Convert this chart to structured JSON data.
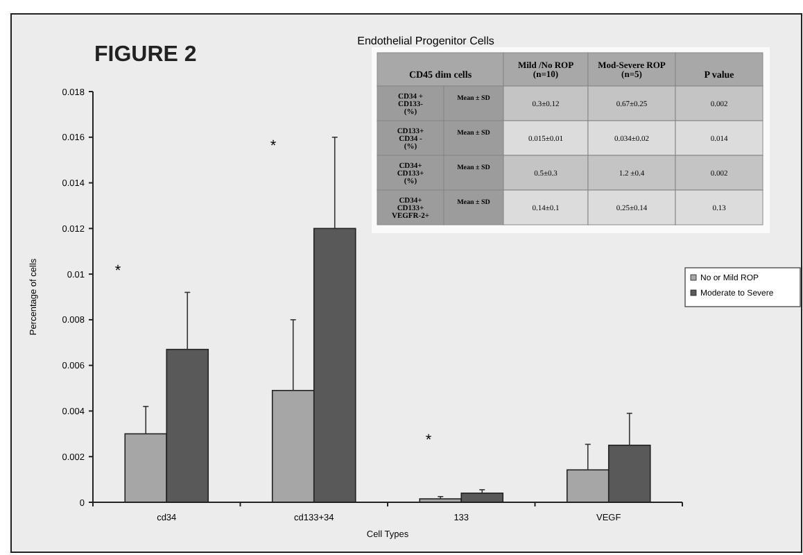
{
  "chart_data": {
    "type": "bar",
    "title": "Endothelial Progenitor Cells",
    "xlabel": "Cell Types",
    "ylabel": "Percentage of cells",
    "categories": [
      "cd34",
      "cd133+34",
      "133",
      "VEGF"
    ],
    "series": [
      {
        "name": "No or Mild ROP",
        "color": "#a6a6a6",
        "values": [
          0.003,
          0.0049,
          0.00015,
          0.00142
        ],
        "errors": [
          [
            0.003,
            0.0042
          ],
          [
            0.0049,
            0.008
          ],
          [
            0.00015,
            0.00025
          ],
          [
            0.00142,
            0.00254
          ]
        ]
      },
      {
        "name": "Moderate to Severe",
        "color": "#595959",
        "values": [
          0.0067,
          0.012,
          0.0004,
          0.0025
        ],
        "errors": [
          [
            0.0067,
            0.0092
          ],
          [
            0.012,
            0.016
          ],
          [
            0.0004,
            0.00055
          ],
          [
            0.0025,
            0.0039
          ]
        ]
      }
    ],
    "ylim": [
      0,
      0.018
    ],
    "yticks": [
      0,
      0.002,
      0.004,
      0.006,
      0.008,
      0.01,
      0.012,
      0.014,
      0.016,
      0.018
    ],
    "grid": false,
    "legend": "right",
    "annotations": [
      "FIGURE 2",
      "*",
      "*",
      "*",
      "CD45 dim cells",
      "Mild /No ROP (n=10)",
      "Mod-Severe ROP (n=5)",
      "P value",
      "CD34 + CD133- (%)",
      "Mean ± SD",
      "0.3±0.12",
      "0.67±0.25",
      "0.002",
      "CD133+ CD34 - (%)",
      "Mean ± SD",
      "0.015±0.01",
      "0.034±0.02",
      "0.014",
      "CD34+ CD133+ (%)",
      "Mean ± SD",
      "0.5±0.3",
      "1.2 ±0.4",
      "0.002",
      "CD34+ CD133+ VEGFR-2+",
      "Mean ± SD",
      "0.14±0.1",
      "0.25±0.14",
      "0.13"
    ]
  }
}
